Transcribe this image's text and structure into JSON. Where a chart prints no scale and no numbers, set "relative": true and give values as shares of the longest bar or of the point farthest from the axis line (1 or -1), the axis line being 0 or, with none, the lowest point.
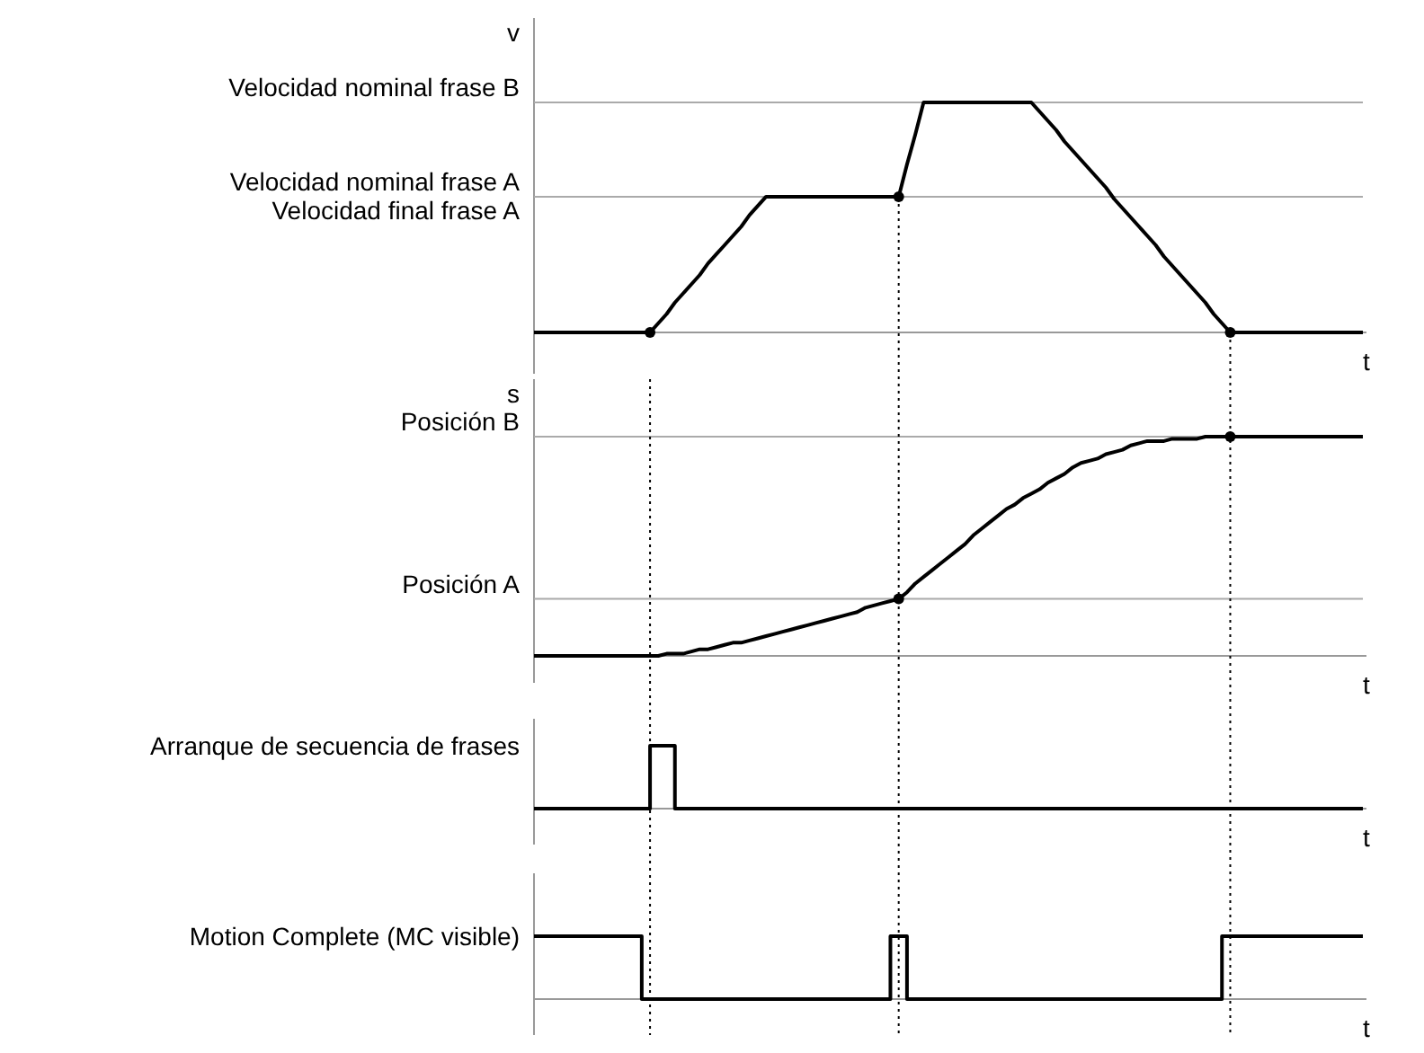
{
  "chart_data": [
    {
      "type": "line",
      "relative": true,
      "ylabel": "v",
      "xlabel": "t",
      "categories": [
        null,
        null,
        null,
        null,
        null,
        null,
        null,
        null,
        null,
        null,
        null,
        null,
        null,
        null,
        null,
        null,
        null,
        null,
        null,
        null,
        null,
        null,
        null,
        null,
        null,
        null,
        null,
        null,
        null,
        null,
        null,
        null,
        null,
        null,
        null,
        null,
        null,
        null,
        null,
        null,
        null,
        null,
        null,
        null,
        null,
        null,
        null,
        null,
        null,
        null,
        null,
        null,
        null,
        null,
        null,
        null,
        null,
        null,
        null,
        null,
        null,
        null,
        null,
        null,
        null,
        null,
        null,
        null,
        null,
        null,
        null,
        null,
        null,
        null,
        null,
        null,
        null,
        null,
        null,
        null,
        null,
        null,
        null,
        null,
        null,
        null,
        null,
        null,
        null,
        null,
        null,
        null,
        null,
        null,
        null,
        null,
        null,
        null,
        null,
        null,
        null
      ],
      "series": [
        {
          "color": "#000000",
          "values": [
            0,
            0,
            0,
            0,
            0,
            0,
            0,
            0,
            0,
            0,
            0,
            0,
            0,
            0,
            0,
            0.04,
            0.08,
            0.13,
            0.17,
            0.21,
            0.25,
            0.3,
            0.34,
            0.38,
            0.42,
            0.46,
            0.51,
            0.55,
            0.59,
            0.59,
            0.59,
            0.59,
            0.59,
            0.59,
            0.59,
            0.59,
            0.59,
            0.59,
            0.59,
            0.59,
            0.59,
            0.59,
            0.59,
            0.59,
            0.59,
            0.73,
            0.86,
            1,
            1,
            1,
            1,
            1,
            1,
            1,
            1,
            1,
            1,
            1,
            1,
            1,
            1,
            0.96,
            0.92,
            0.88,
            0.83,
            0.79,
            0.75,
            0.71,
            0.67,
            0.63,
            0.58,
            0.54,
            0.5,
            0.46,
            0.42,
            0.38,
            0.33,
            0.29,
            0.25,
            0.21,
            0.17,
            0.13,
            0.08,
            0.04,
            0,
            0,
            0,
            0,
            0,
            0,
            0,
            0,
            0,
            0,
            0,
            0,
            0,
            0,
            0,
            0,
            0
          ]
        }
      ],
      "ref_lines": [
        {
          "axis": "y",
          "value": 1,
          "label": "Velocidad nominal frase B",
          "color": "#aaaaaa"
        },
        {
          "axis": "y",
          "value": 0.59,
          "label": "Velocidad nominal frase A",
          "color": "#aaaaaa"
        }
      ],
      "annotations": [
        "Velocidad final frase A"
      ]
    },
    {
      "type": "line",
      "relative": true,
      "ylabel": "s",
      "xlabel": "t",
      "categories": [
        null,
        null,
        null,
        null,
        null,
        null,
        null,
        null,
        null,
        null,
        null,
        null,
        null,
        null,
        null,
        null,
        null,
        null,
        null,
        null,
        null,
        null,
        null,
        null,
        null,
        null,
        null,
        null,
        null,
        null,
        null,
        null,
        null,
        null,
        null,
        null,
        null,
        null,
        null,
        null,
        null,
        null,
        null,
        null,
        null,
        null,
        null,
        null,
        null,
        null,
        null,
        null,
        null,
        null,
        null,
        null,
        null,
        null,
        null,
        null,
        null,
        null,
        null,
        null,
        null,
        null,
        null,
        null,
        null,
        null,
        null,
        null,
        null,
        null,
        null,
        null,
        null,
        null,
        null,
        null,
        null,
        null,
        null,
        null,
        null,
        null,
        null,
        null,
        null,
        null,
        null,
        null,
        null,
        null,
        null,
        null,
        null,
        null,
        null,
        null,
        null
      ],
      "series": [
        {
          "color": "#000000",
          "values": [
            0,
            0,
            0,
            0,
            0,
            0,
            0,
            0,
            0,
            0,
            0,
            0,
            0,
            0,
            0,
            0,
            0.01,
            0.01,
            0.01,
            0.02,
            0.03,
            0.03,
            0.04,
            0.05,
            0.06,
            0.06,
            0.07,
            0.08,
            0.09,
            0.1,
            0.11,
            0.12,
            0.13,
            0.14,
            0.15,
            0.16,
            0.17,
            0.18,
            0.19,
            0.2,
            0.22,
            0.23,
            0.24,
            0.25,
            0.26,
            0.29,
            0.33,
            0.36,
            0.39,
            0.42,
            0.45,
            0.48,
            0.51,
            0.55,
            0.58,
            0.61,
            0.64,
            0.67,
            0.69,
            0.72,
            0.74,
            0.76,
            0.79,
            0.81,
            0.83,
            0.86,
            0.88,
            0.89,
            0.9,
            0.92,
            0.93,
            0.94,
            0.96,
            0.97,
            0.98,
            0.98,
            0.98,
            0.99,
            0.99,
            0.99,
            0.99,
            1,
            1,
            1,
            1,
            1,
            1,
            1,
            1,
            1,
            1,
            1,
            1,
            1,
            1,
            1,
            1,
            1,
            1,
            1,
            1
          ]
        }
      ],
      "ref_lines": [
        {
          "axis": "y",
          "value": 1,
          "label": "Posición B",
          "color": "#aaaaaa"
        },
        {
          "axis": "y",
          "value": 0.26,
          "label": "Posición A",
          "color": "#aaaaaa"
        }
      ]
    },
    {
      "type": "step",
      "relative": true,
      "xlabel": "t",
      "categories": [
        null,
        null,
        null,
        null,
        null,
        null,
        null,
        null,
        null,
        null,
        null,
        null,
        null,
        null,
        null,
        null,
        null,
        null,
        null,
        null,
        null,
        null,
        null,
        null,
        null,
        null,
        null,
        null,
        null,
        null,
        null,
        null,
        null,
        null,
        null,
        null,
        null,
        null,
        null,
        null,
        null,
        null,
        null,
        null,
        null,
        null,
        null,
        null,
        null,
        null,
        null,
        null,
        null,
        null,
        null,
        null,
        null,
        null,
        null,
        null,
        null,
        null,
        null,
        null,
        null,
        null,
        null,
        null,
        null,
        null,
        null,
        null,
        null,
        null,
        null,
        null,
        null,
        null,
        null,
        null,
        null,
        null,
        null,
        null,
        null,
        null,
        null,
        null,
        null,
        null,
        null,
        null,
        null,
        null,
        null,
        null,
        null,
        null,
        null,
        null,
        null
      ],
      "series": [
        {
          "color": "#000000",
          "values": [
            0,
            0,
            0,
            0,
            0,
            0,
            0,
            0,
            0,
            0,
            0,
            0,
            0,
            0,
            0,
            1,
            1,
            1,
            0,
            0,
            0,
            0,
            0,
            0,
            0,
            0,
            0,
            0,
            0,
            0,
            0,
            0,
            0,
            0,
            0,
            0,
            0,
            0,
            0,
            0,
            0,
            0,
            0,
            0,
            0,
            0,
            0,
            0,
            0,
            0,
            0,
            0,
            0,
            0,
            0,
            0,
            0,
            0,
            0,
            0,
            0,
            0,
            0,
            0,
            0,
            0,
            0,
            0,
            0,
            0,
            0,
            0,
            0,
            0,
            0,
            0,
            0,
            0,
            0,
            0,
            0,
            0,
            0,
            0,
            0,
            0,
            0,
            0,
            0,
            0,
            0,
            0,
            0,
            0,
            0,
            0,
            0,
            0,
            0,
            0,
            0
          ]
        }
      ],
      "annotations": [
        "Arranque de secuencia de frases"
      ]
    },
    {
      "type": "step",
      "relative": true,
      "xlabel": "t",
      "categories": [
        null,
        null,
        null,
        null,
        null,
        null,
        null,
        null,
        null,
        null,
        null,
        null,
        null,
        null,
        null,
        null,
        null,
        null,
        null,
        null,
        null,
        null,
        null,
        null,
        null,
        null,
        null,
        null,
        null,
        null,
        null,
        null,
        null,
        null,
        null,
        null,
        null,
        null,
        null,
        null,
        null,
        null,
        null,
        null,
        null,
        null,
        null,
        null,
        null,
        null,
        null,
        null,
        null,
        null,
        null,
        null,
        null,
        null,
        null,
        null,
        null,
        null,
        null,
        null,
        null,
        null,
        null,
        null,
        null,
        null,
        null,
        null,
        null,
        null,
        null,
        null,
        null,
        null,
        null,
        null,
        null,
        null,
        null,
        null,
        null,
        null,
        null,
        null,
        null,
        null,
        null,
        null,
        null,
        null,
        null,
        null,
        null,
        null,
        null,
        null,
        null
      ],
      "series": [
        {
          "color": "#000000",
          "values": [
            1,
            1,
            1,
            1,
            1,
            1,
            1,
            1,
            1,
            1,
            1,
            1,
            1,
            1,
            0,
            0,
            0,
            0,
            0,
            0,
            0,
            0,
            0,
            0,
            0,
            0,
            0,
            0,
            0,
            0,
            0,
            0,
            0,
            0,
            0,
            0,
            0,
            0,
            0,
            0,
            0,
            0,
            0,
            0,
            1,
            1,
            0,
            0,
            0,
            0,
            0,
            0,
            0,
            0,
            0,
            0,
            0,
            0,
            0,
            0,
            0,
            0,
            0,
            0,
            0,
            0,
            0,
            0,
            0,
            0,
            0,
            0,
            0,
            0,
            0,
            0,
            0,
            0,
            0,
            0,
            0,
            0,
            0,
            0,
            1,
            1,
            1,
            1,
            1,
            1,
            1,
            1,
            1,
            1,
            1,
            1,
            1,
            1,
            1,
            1,
            1
          ]
        }
      ],
      "annotations": [
        "Motion Complete (MC visible)"
      ]
    }
  ]
}
